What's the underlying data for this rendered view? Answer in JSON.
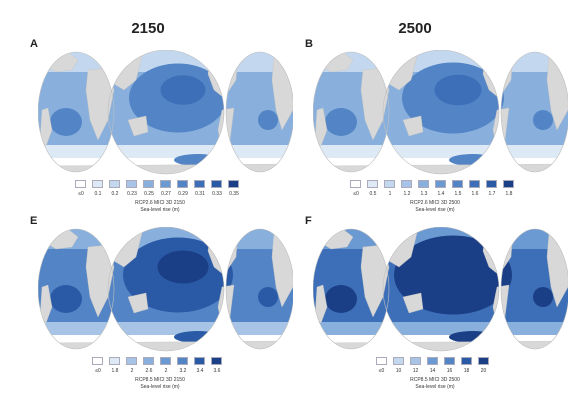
{
  "column_titles": [
    "2150",
    "2500"
  ],
  "colors": {
    "land": "#d8d8d8",
    "ramp": [
      "#ffffff",
      "#dde9f5",
      "#c3d8ee",
      "#a7c4e6",
      "#89b0dc",
      "#6b99d1",
      "#5284c6",
      "#3c6fb8",
      "#2a5aa6",
      "#1b3f86"
    ]
  },
  "panels": [
    {
      "letter": "A",
      "legend_ticks": [
        "≤0",
        "0.1",
        "0.2",
        "0.23",
        "0.25",
        "0.27",
        "0.29",
        "0.31",
        "0.33",
        "0.35"
      ],
      "caption_line1": "RCP2.6 MICI 3D 2150",
      "caption_line2": "Sea-level rise (m)",
      "intensity": 0.45
    },
    {
      "letter": "B",
      "legend_ticks": [
        "≤0",
        "0.5",
        "1",
        "1.2",
        "1.3",
        "1.4",
        "1.5",
        "1.6",
        "1.7",
        "1.8"
      ],
      "caption_line1": "RCP2.6 MICI 3D 2500",
      "caption_line2": "Sea-level rise (m)",
      "intensity": 0.55
    },
    {
      "letter": "E",
      "legend_ticks": [
        "≤0",
        "1.8",
        "2",
        "2.6",
        "2",
        "3.2",
        "3.4",
        "3.6"
      ],
      "caption_line1": "RCP8.5 MICI 3D 2150",
      "caption_line2": "Sea-level rise (m)",
      "intensity": 0.75
    },
    {
      "letter": "F",
      "legend_ticks": [
        "≤0",
        "10",
        "12",
        "14",
        "16",
        "18",
        "20"
      ],
      "caption_line1": "RCP8.5 MICI 3D 2500",
      "caption_line2": "Sea-level rise (m)",
      "intensity": 0.95
    }
  ]
}
